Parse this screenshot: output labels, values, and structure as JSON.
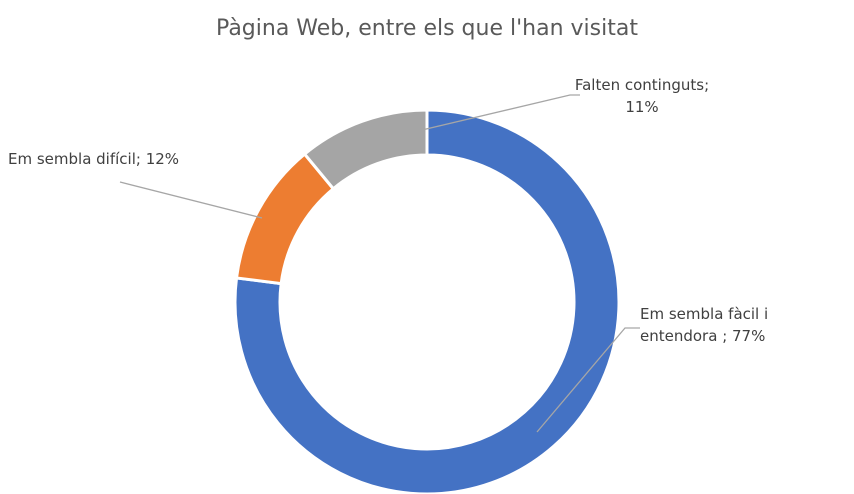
{
  "chart_data": {
    "type": "donut",
    "title": "Pàgina Web, entre els que l'han visitat",
    "categories": [
      "Em sembla fàcil i entendora ",
      "Em sembla difícil",
      "Falten continguts"
    ],
    "values": [
      77,
      12,
      11
    ],
    "value_labels": [
      "77%",
      "12%",
      "11%"
    ],
    "label_separator": "; ",
    "colors": [
      "#4472c4",
      "#ed7d31",
      "#a5a5a5"
    ]
  }
}
